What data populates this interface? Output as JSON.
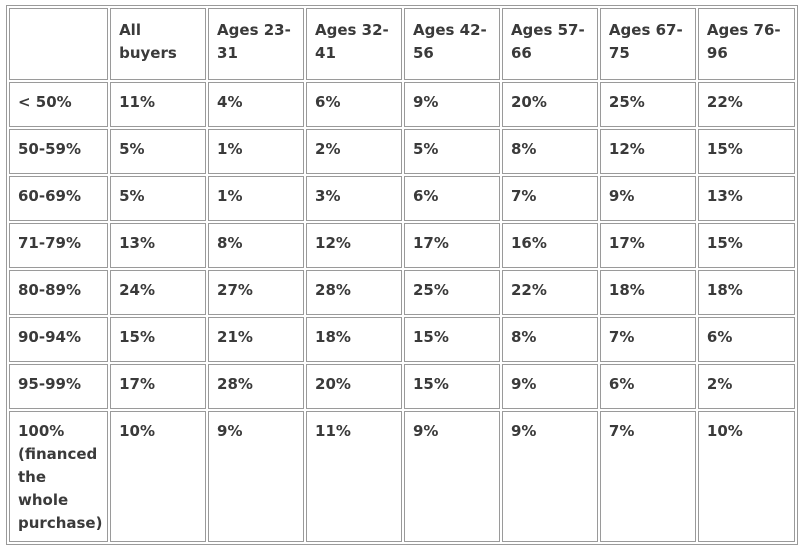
{
  "table": {
    "headers": [
      "",
      "All buyers",
      "Ages 23-31",
      "Ages 32-41",
      "Ages 42-56",
      "Ages 57-66",
      "Ages 67-75",
      "Ages 76-96"
    ],
    "rows": [
      [
        "< 50%",
        "11%",
        "4%",
        "6%",
        "9%",
        "20%",
        "25%",
        "22%"
      ],
      [
        "50-59%",
        "5%",
        "1%",
        "2%",
        "5%",
        "8%",
        "12%",
        "15%"
      ],
      [
        "60-69%",
        "5%",
        "1%",
        "3%",
        "6%",
        "7%",
        "9%",
        "13%"
      ],
      [
        "71-79%",
        "13%",
        "8%",
        "12%",
        "17%",
        "16%",
        "17%",
        "15%"
      ],
      [
        "80-89%",
        "24%",
        "27%",
        "28%",
        "25%",
        "22%",
        "18%",
        "18%"
      ],
      [
        "90-94%",
        "15%",
        "21%",
        "18%",
        "15%",
        "8%",
        "7%",
        "6%"
      ],
      [
        "95-99%",
        "17%",
        "28%",
        "20%",
        "15%",
        "9%",
        "6%",
        "2%"
      ],
      [
        "100% (financed the whole purchase)",
        "10%",
        "9%",
        "11%",
        "9%",
        "9%",
        "7%",
        "10%"
      ]
    ]
  }
}
